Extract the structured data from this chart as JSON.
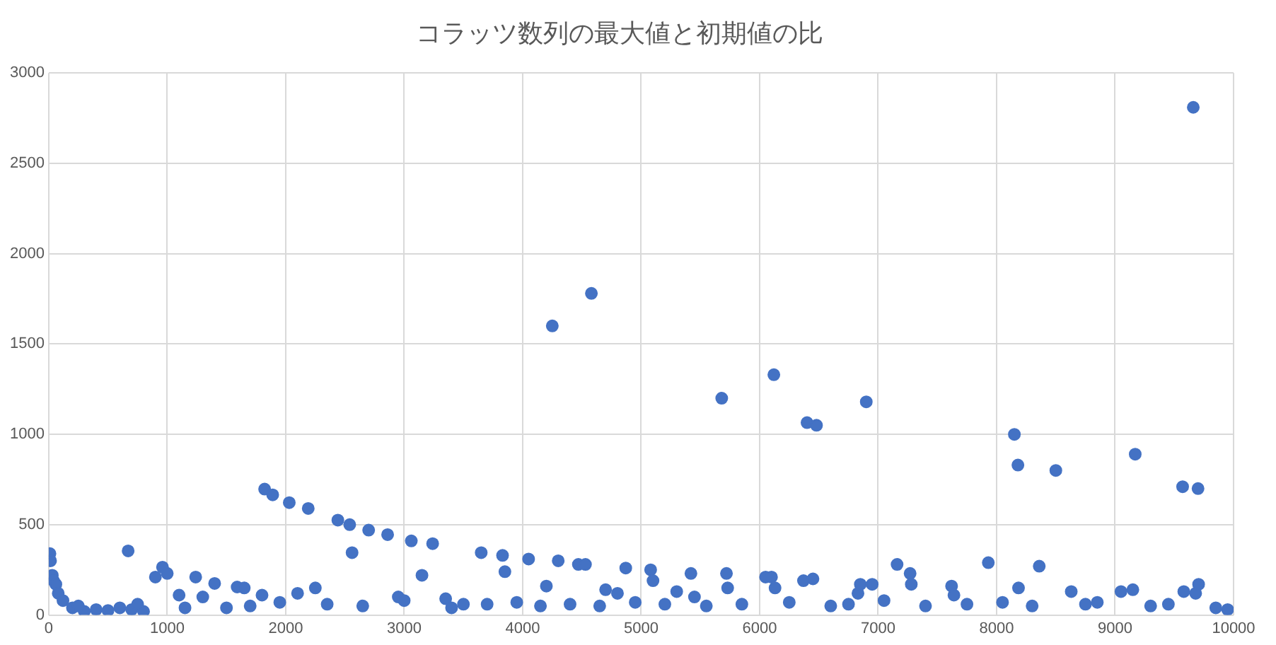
{
  "chart_data": {
    "type": "scatter",
    "title": "コラッツ数列の最大値と初期値の比",
    "color": "#4472c4",
    "marker": "circle",
    "grid": true,
    "legend": false,
    "xlim": [
      0,
      10000
    ],
    "xticks": [
      0,
      1000,
      2000,
      3000,
      4000,
      5000,
      6000,
      7000,
      8000,
      9000,
      10000
    ],
    "ylim": [
      0,
      3000
    ],
    "yticks": [
      0,
      500,
      1000,
      1500,
      2000,
      2500,
      3000
    ],
    "x": [
      10,
      15,
      30,
      40,
      60,
      80,
      120,
      200,
      300,
      400,
      500,
      600,
      670,
      700,
      800,
      900,
      960,
      1000,
      1100,
      1240,
      1300,
      1400,
      1500,
      1590,
      1650,
      1800,
      1822,
      1890,
      2030,
      2100,
      2190,
      2250,
      2440,
      2540,
      2560,
      2700,
      2860,
      2950,
      3060,
      3150,
      3240,
      3350,
      3500,
      3650,
      3830,
      3850,
      4050,
      4200,
      4250,
      4300,
      4470,
      4530,
      4580,
      4700,
      4800,
      4870,
      5080,
      5100,
      5300,
      5420,
      5450,
      5680,
      5720,
      5730,
      6050,
      6100,
      6120,
      6130,
      6370,
      6400,
      6450,
      6480,
      6830,
      6850,
      6900,
      6950,
      7160,
      7270,
      7280,
      7620,
      7640,
      7930,
      8150,
      8180,
      8185,
      8360,
      8500,
      8630,
      9050,
      9150,
      9170,
      9570,
      9580,
      9660,
      9680,
      9700,
      9705,
      250,
      750,
      1150,
      1700,
      1950,
      2350,
      2650,
      3000,
      3400,
      3700,
      3950,
      4150,
      4400,
      4650,
      4950,
      5200,
      5550,
      5850,
      6250,
      6600,
      6750,
      7050,
      7400,
      7750,
      8050,
      8300,
      8750,
      8850,
      9300,
      9450,
      9850,
      9950
    ],
    "values": [
      340,
      300,
      220,
      190,
      170,
      120,
      80,
      40,
      20,
      30,
      25,
      40,
      355,
      30,
      20,
      210,
      265,
      230,
      110,
      210,
      100,
      175,
      40,
      155,
      150,
      110,
      697,
      665,
      622,
      120,
      590,
      150,
      525,
      500,
      345,
      470,
      445,
      100,
      410,
      220,
      395,
      90,
      60,
      345,
      330,
      240,
      310,
      160,
      1600,
      300,
      280,
      280,
      1780,
      140,
      120,
      260,
      250,
      190,
      130,
      230,
      100,
      1200,
      230,
      150,
      210,
      210,
      1330,
      150,
      190,
      1065,
      200,
      1050,
      120,
      170,
      1180,
      170,
      280,
      230,
      170,
      160,
      110,
      290,
      1000,
      830,
      150,
      270,
      800,
      130,
      130,
      140,
      890,
      710,
      130,
      2810,
      120,
      700,
      170,
      50,
      60,
      40,
      50,
      70,
      60,
      50,
      80,
      40,
      60,
      70,
      50,
      60,
      50,
      70,
      60,
      50,
      60,
      70,
      50,
      60,
      80,
      50,
      60,
      70,
      50,
      60,
      70,
      50,
      60,
      40,
      30
    ]
  }
}
